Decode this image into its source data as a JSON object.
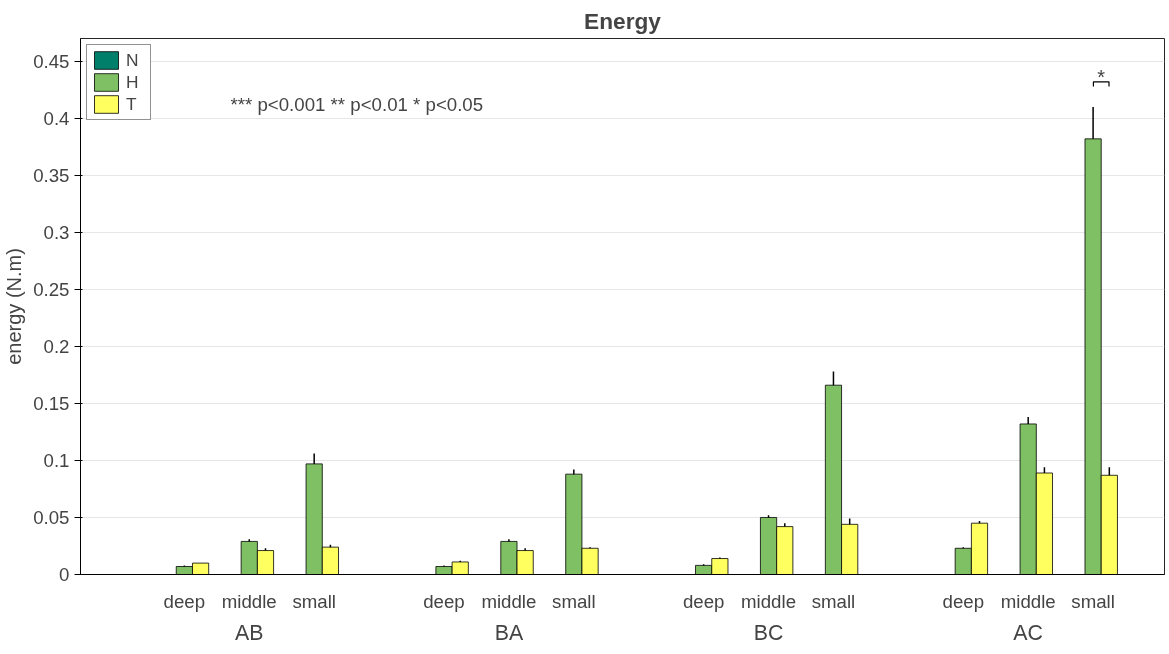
{
  "chart_data": {
    "type": "bar",
    "title": "Energy",
    "ylabel": "energy (N.m)",
    "categories": [
      "deep",
      "middle",
      "small",
      null,
      "deep",
      "middle",
      "small",
      null,
      "deep",
      "middle",
      "small",
      null,
      "deep",
      "middle",
      "small"
    ],
    "series": [
      {
        "name": "N",
        "color": "#00806a",
        "values": [
          null,
          null,
          null,
          null,
          null,
          null,
          null,
          null,
          null,
          null,
          null,
          null,
          null,
          null,
          null
        ]
      },
      {
        "name": "H",
        "color": "#80c064",
        "values": [
          0.007,
          0.029,
          0.097,
          null,
          0.007,
          0.029,
          0.088,
          null,
          0.008,
          0.05,
          0.166,
          null,
          0.023,
          0.132,
          0.382
        ],
        "errors": [
          0.001,
          0.002,
          0.009,
          null,
          0.001,
          0.002,
          0.004,
          null,
          0.001,
          0.002,
          0.012,
          null,
          0.001,
          0.006,
          0.028
        ]
      },
      {
        "name": "T",
        "color": "#ffff60",
        "values": [
          0.01,
          0.021,
          0.024,
          null,
          0.011,
          0.021,
          0.023,
          null,
          0.014,
          0.042,
          0.044,
          null,
          0.045,
          0.089,
          0.087
        ],
        "errors": [
          null,
          0.002,
          0.002,
          null,
          0.001,
          0.002,
          0.001,
          null,
          0.001,
          0.003,
          0.005,
          null,
          0.002,
          0.005,
          0.007
        ]
      }
    ],
    "ylim": [
      0,
      0.47
    ],
    "yticks": [
      0,
      0.05,
      0.1,
      0.15,
      0.2,
      0.25,
      0.3,
      0.35,
      0.4,
      0.45
    ],
    "grid": "y",
    "legend": "top left",
    "annotations": [
      "*** p<0.001    ** p<0.01    * p<0.05",
      "*",
      "AB",
      "BA",
      "BC",
      "AC"
    ]
  }
}
